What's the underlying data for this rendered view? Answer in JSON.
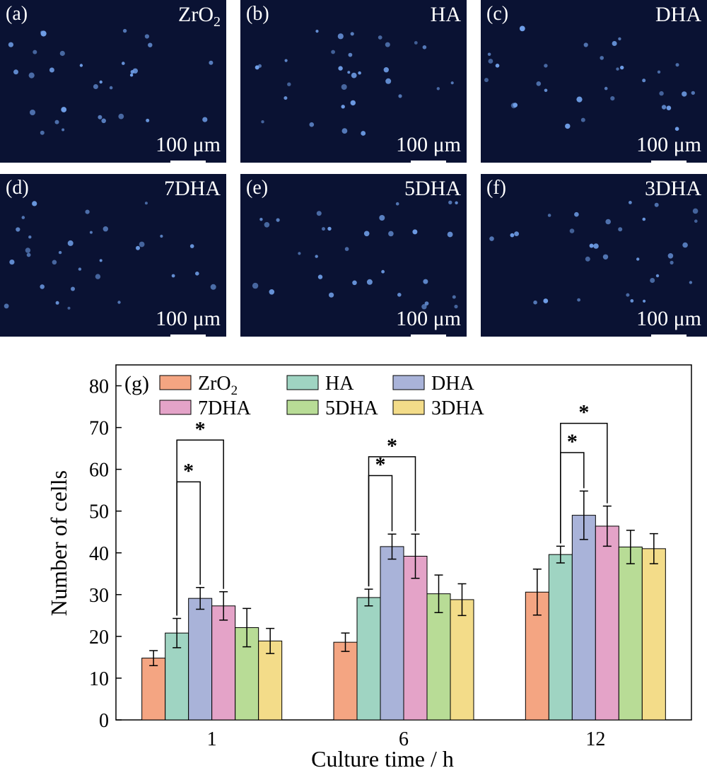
{
  "panels": [
    {
      "label": "(a)",
      "name": "ZrO",
      "sub": "2",
      "scale": "100 μm"
    },
    {
      "label": "(b)",
      "name": "HA",
      "sub": "",
      "scale": "100 μm"
    },
    {
      "label": "(c)",
      "name": "DHA",
      "sub": "",
      "scale": "100 μm"
    },
    {
      "label": "(d)",
      "name": "7DHA",
      "sub": "",
      "scale": "100 μm"
    },
    {
      "label": "(e)",
      "name": "5DHA",
      "sub": "",
      "scale": "100 μm"
    },
    {
      "label": "(f)",
      "name": "3DHA",
      "sub": "",
      "scale": "100 μm"
    }
  ],
  "chart_data": {
    "type": "bar",
    "panel_label": "(g)",
    "title": "",
    "xlabel": "Culture time / h",
    "ylabel": "Number of cells",
    "categories": [
      "1",
      "6",
      "12"
    ],
    "ylim": [
      0,
      85
    ],
    "yticks": [
      0,
      10,
      20,
      30,
      40,
      50,
      60,
      70,
      80
    ],
    "legend_position": "top",
    "series": [
      {
        "name": "ZrO",
        "name_sub": "2",
        "color": "#f4a582",
        "values": [
          14.8,
          18.6,
          30.6
        ],
        "errors": [
          1.8,
          2.2,
          5.5
        ]
      },
      {
        "name": "HA",
        "color": "#9fd4c2",
        "values": [
          20.8,
          29.3,
          39.6
        ],
        "errors": [
          3.5,
          2.0,
          2.0
        ]
      },
      {
        "name": "DHA",
        "color": "#a9b3d9",
        "values": [
          29.1,
          41.5,
          49.0
        ],
        "errors": [
          2.6,
          3.0,
          5.8
        ]
      },
      {
        "name": "7DHA",
        "color": "#e4a3c8",
        "values": [
          27.3,
          39.2,
          46.4
        ],
        "errors": [
          3.4,
          5.3,
          4.8
        ]
      },
      {
        "name": "5DHA",
        "color": "#b8dc96",
        "values": [
          22.1,
          30.2,
          41.4
        ],
        "errors": [
          4.6,
          4.5,
          4.0
        ]
      },
      {
        "name": "3DHA",
        "color": "#f3dc89",
        "values": [
          18.9,
          28.8,
          41.0
        ],
        "errors": [
          3.0,
          3.8,
          3.6
        ]
      }
    ],
    "significance": [
      {
        "category": 0,
        "from_series": 1,
        "to_series": 2,
        "y": 57,
        "label": "*"
      },
      {
        "category": 0,
        "from_series": 1,
        "to_series": 3,
        "y": 67,
        "label": "*"
      },
      {
        "category": 1,
        "from_series": 1,
        "to_series": 2,
        "y": 58.5,
        "label": "*"
      },
      {
        "category": 1,
        "from_series": 1,
        "to_series": 3,
        "y": 63,
        "label": "*"
      },
      {
        "category": 2,
        "from_series": 1,
        "to_series": 2,
        "y": 64,
        "label": "*"
      },
      {
        "category": 2,
        "from_series": 1,
        "to_series": 3,
        "y": 71,
        "label": "*"
      }
    ]
  }
}
